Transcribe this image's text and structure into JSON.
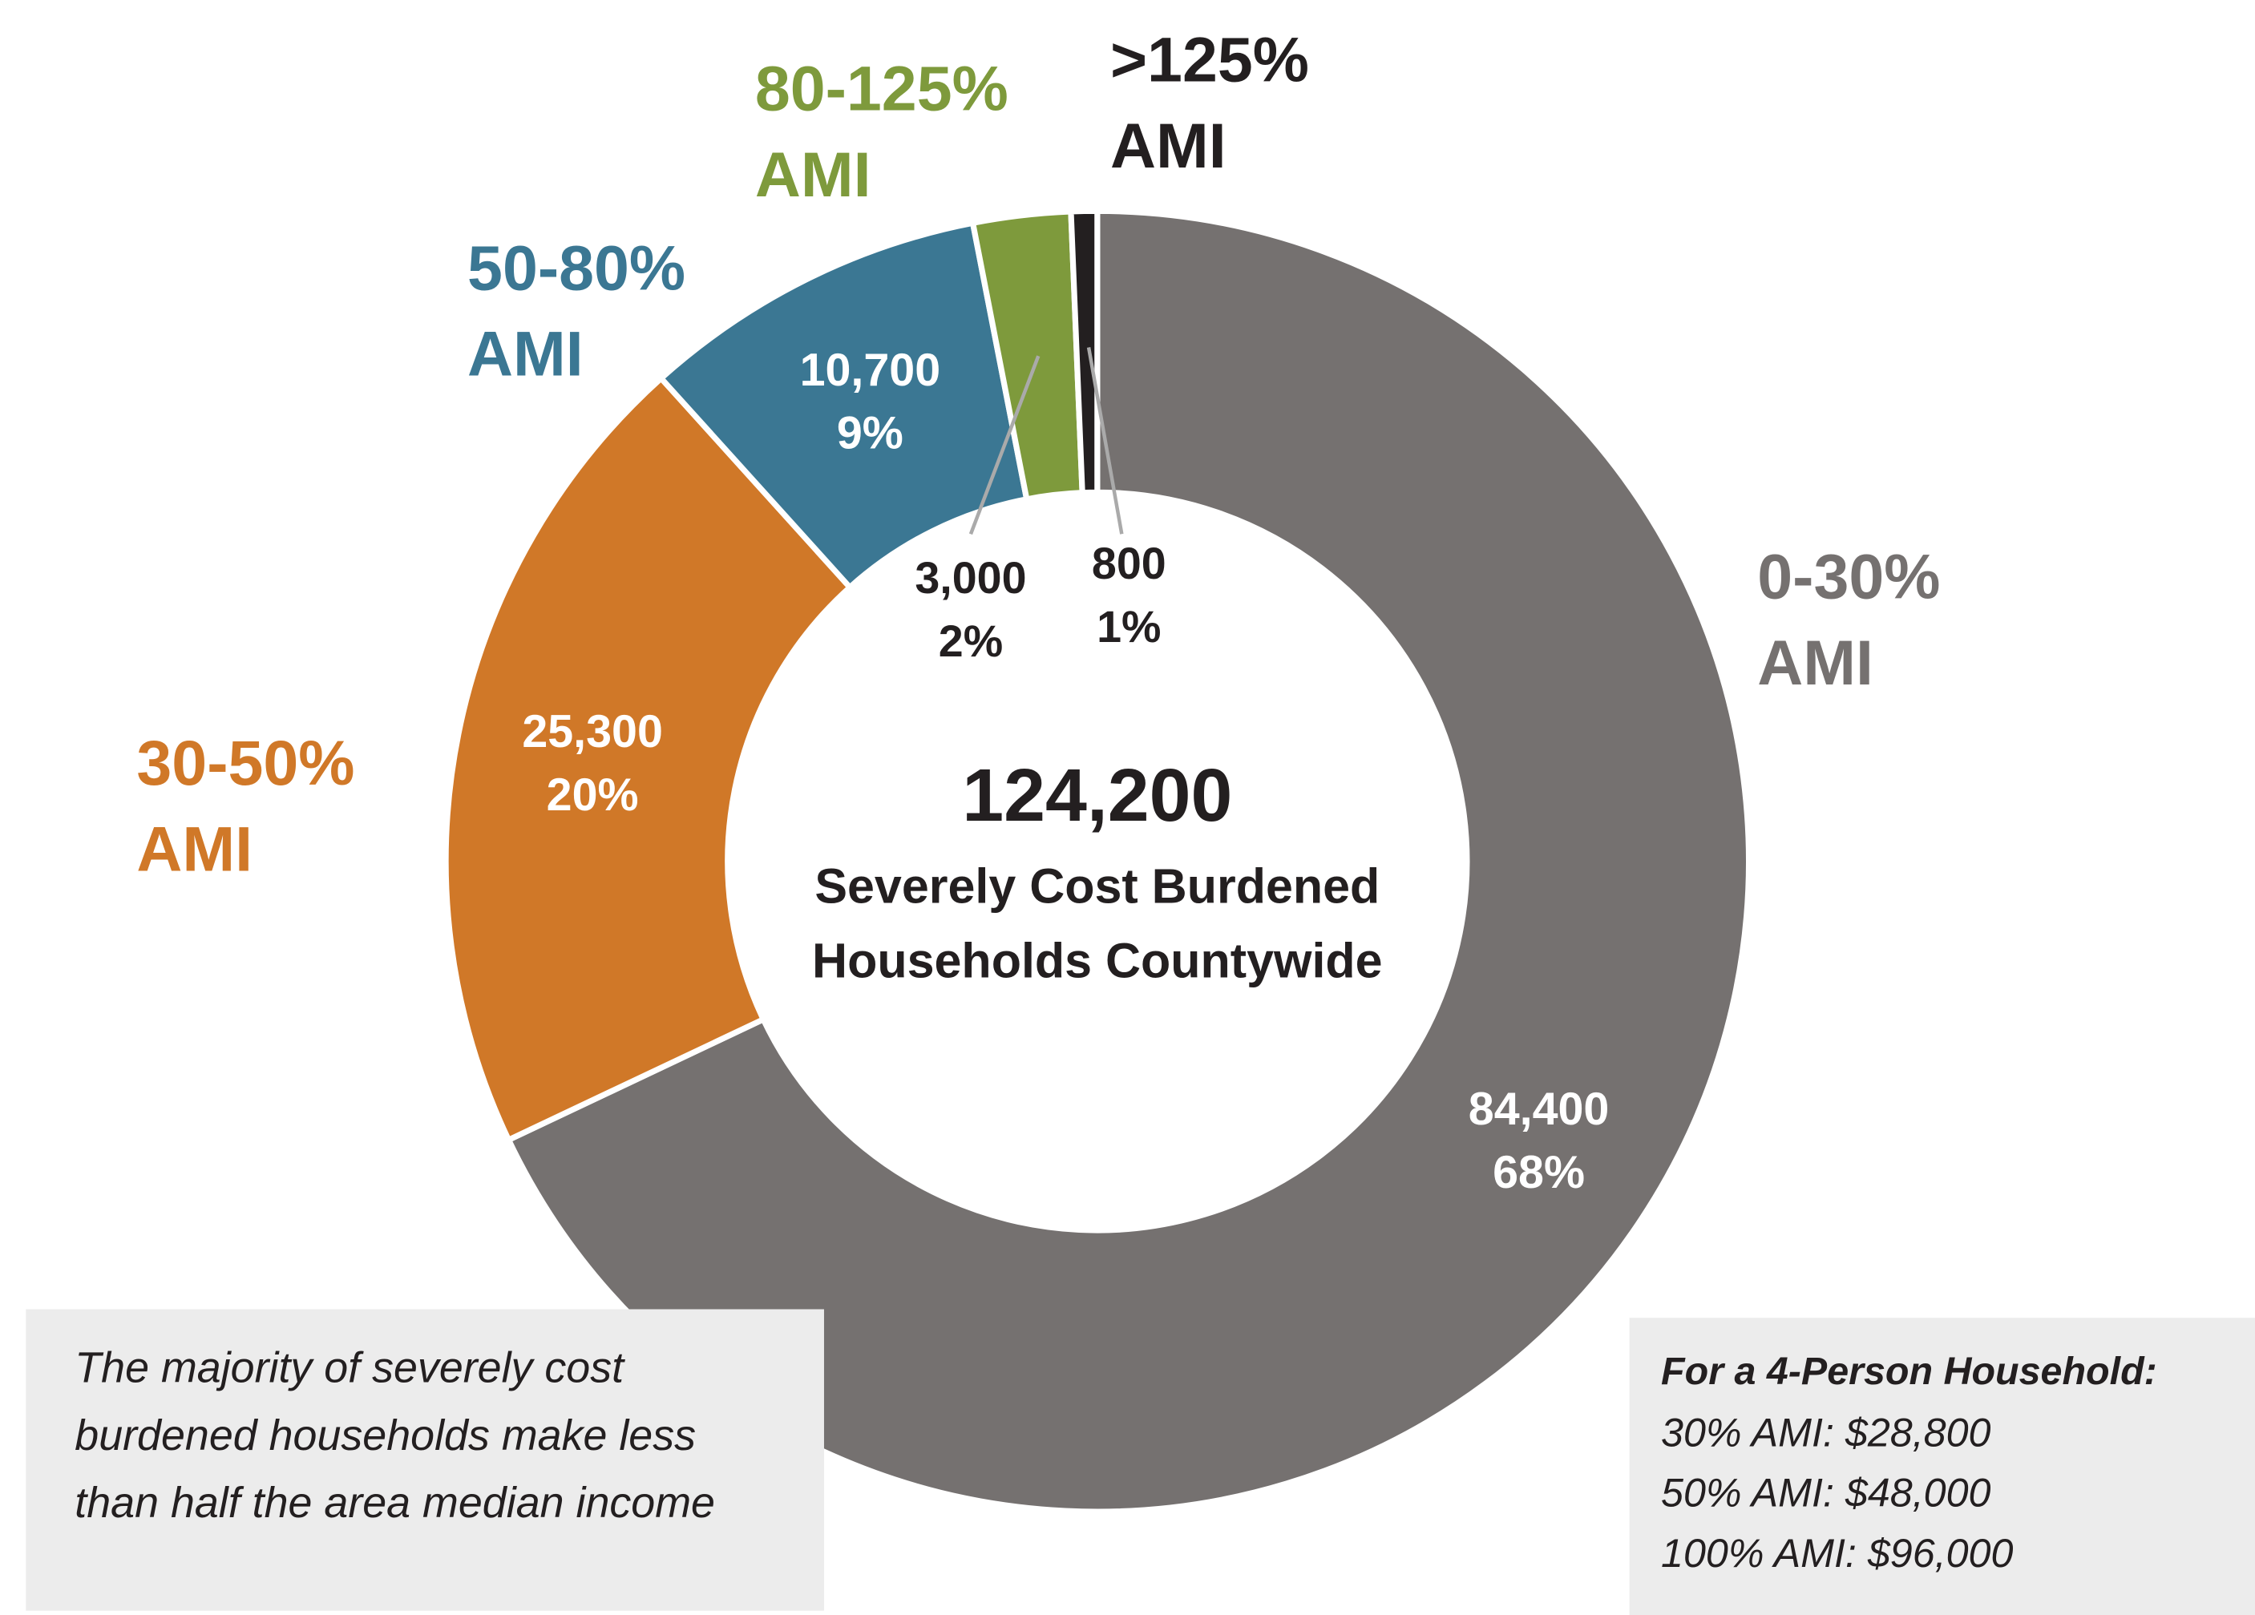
{
  "chart_data": {
    "type": "donut",
    "categories": [
      "0-30% AMI",
      "30-50% AMI",
      "50-80% AMI",
      "80-125% AMI",
      ">125% AMI"
    ],
    "values": [
      84400,
      25300,
      10700,
      3000,
      800
    ],
    "value_labels": [
      "84,400",
      "25,300",
      "10,700",
      "3,000",
      "800"
    ],
    "shares": [
      68,
      20,
      9,
      2,
      1
    ],
    "share_labels": [
      "68%",
      "20%",
      "9%",
      "2%",
      "1%"
    ],
    "colors": [
      "#757170",
      "#d07828",
      "#3b7793",
      "#7e9a3c",
      "#231f20"
    ],
    "center_total": "124,200",
    "center_caption": [
      "Severely Cost Burdened",
      "Households Countywide"
    ],
    "annotations": {
      "note": [
        "The majority of severely cost",
        "burdened households make less",
        "than half the area median income"
      ],
      "household": {
        "title": "For a 4-Person Household:",
        "lines": [
          "30% AMI: $28,800",
          "50% AMI: $48,000",
          "100% AMI: $96,000"
        ]
      }
    }
  }
}
